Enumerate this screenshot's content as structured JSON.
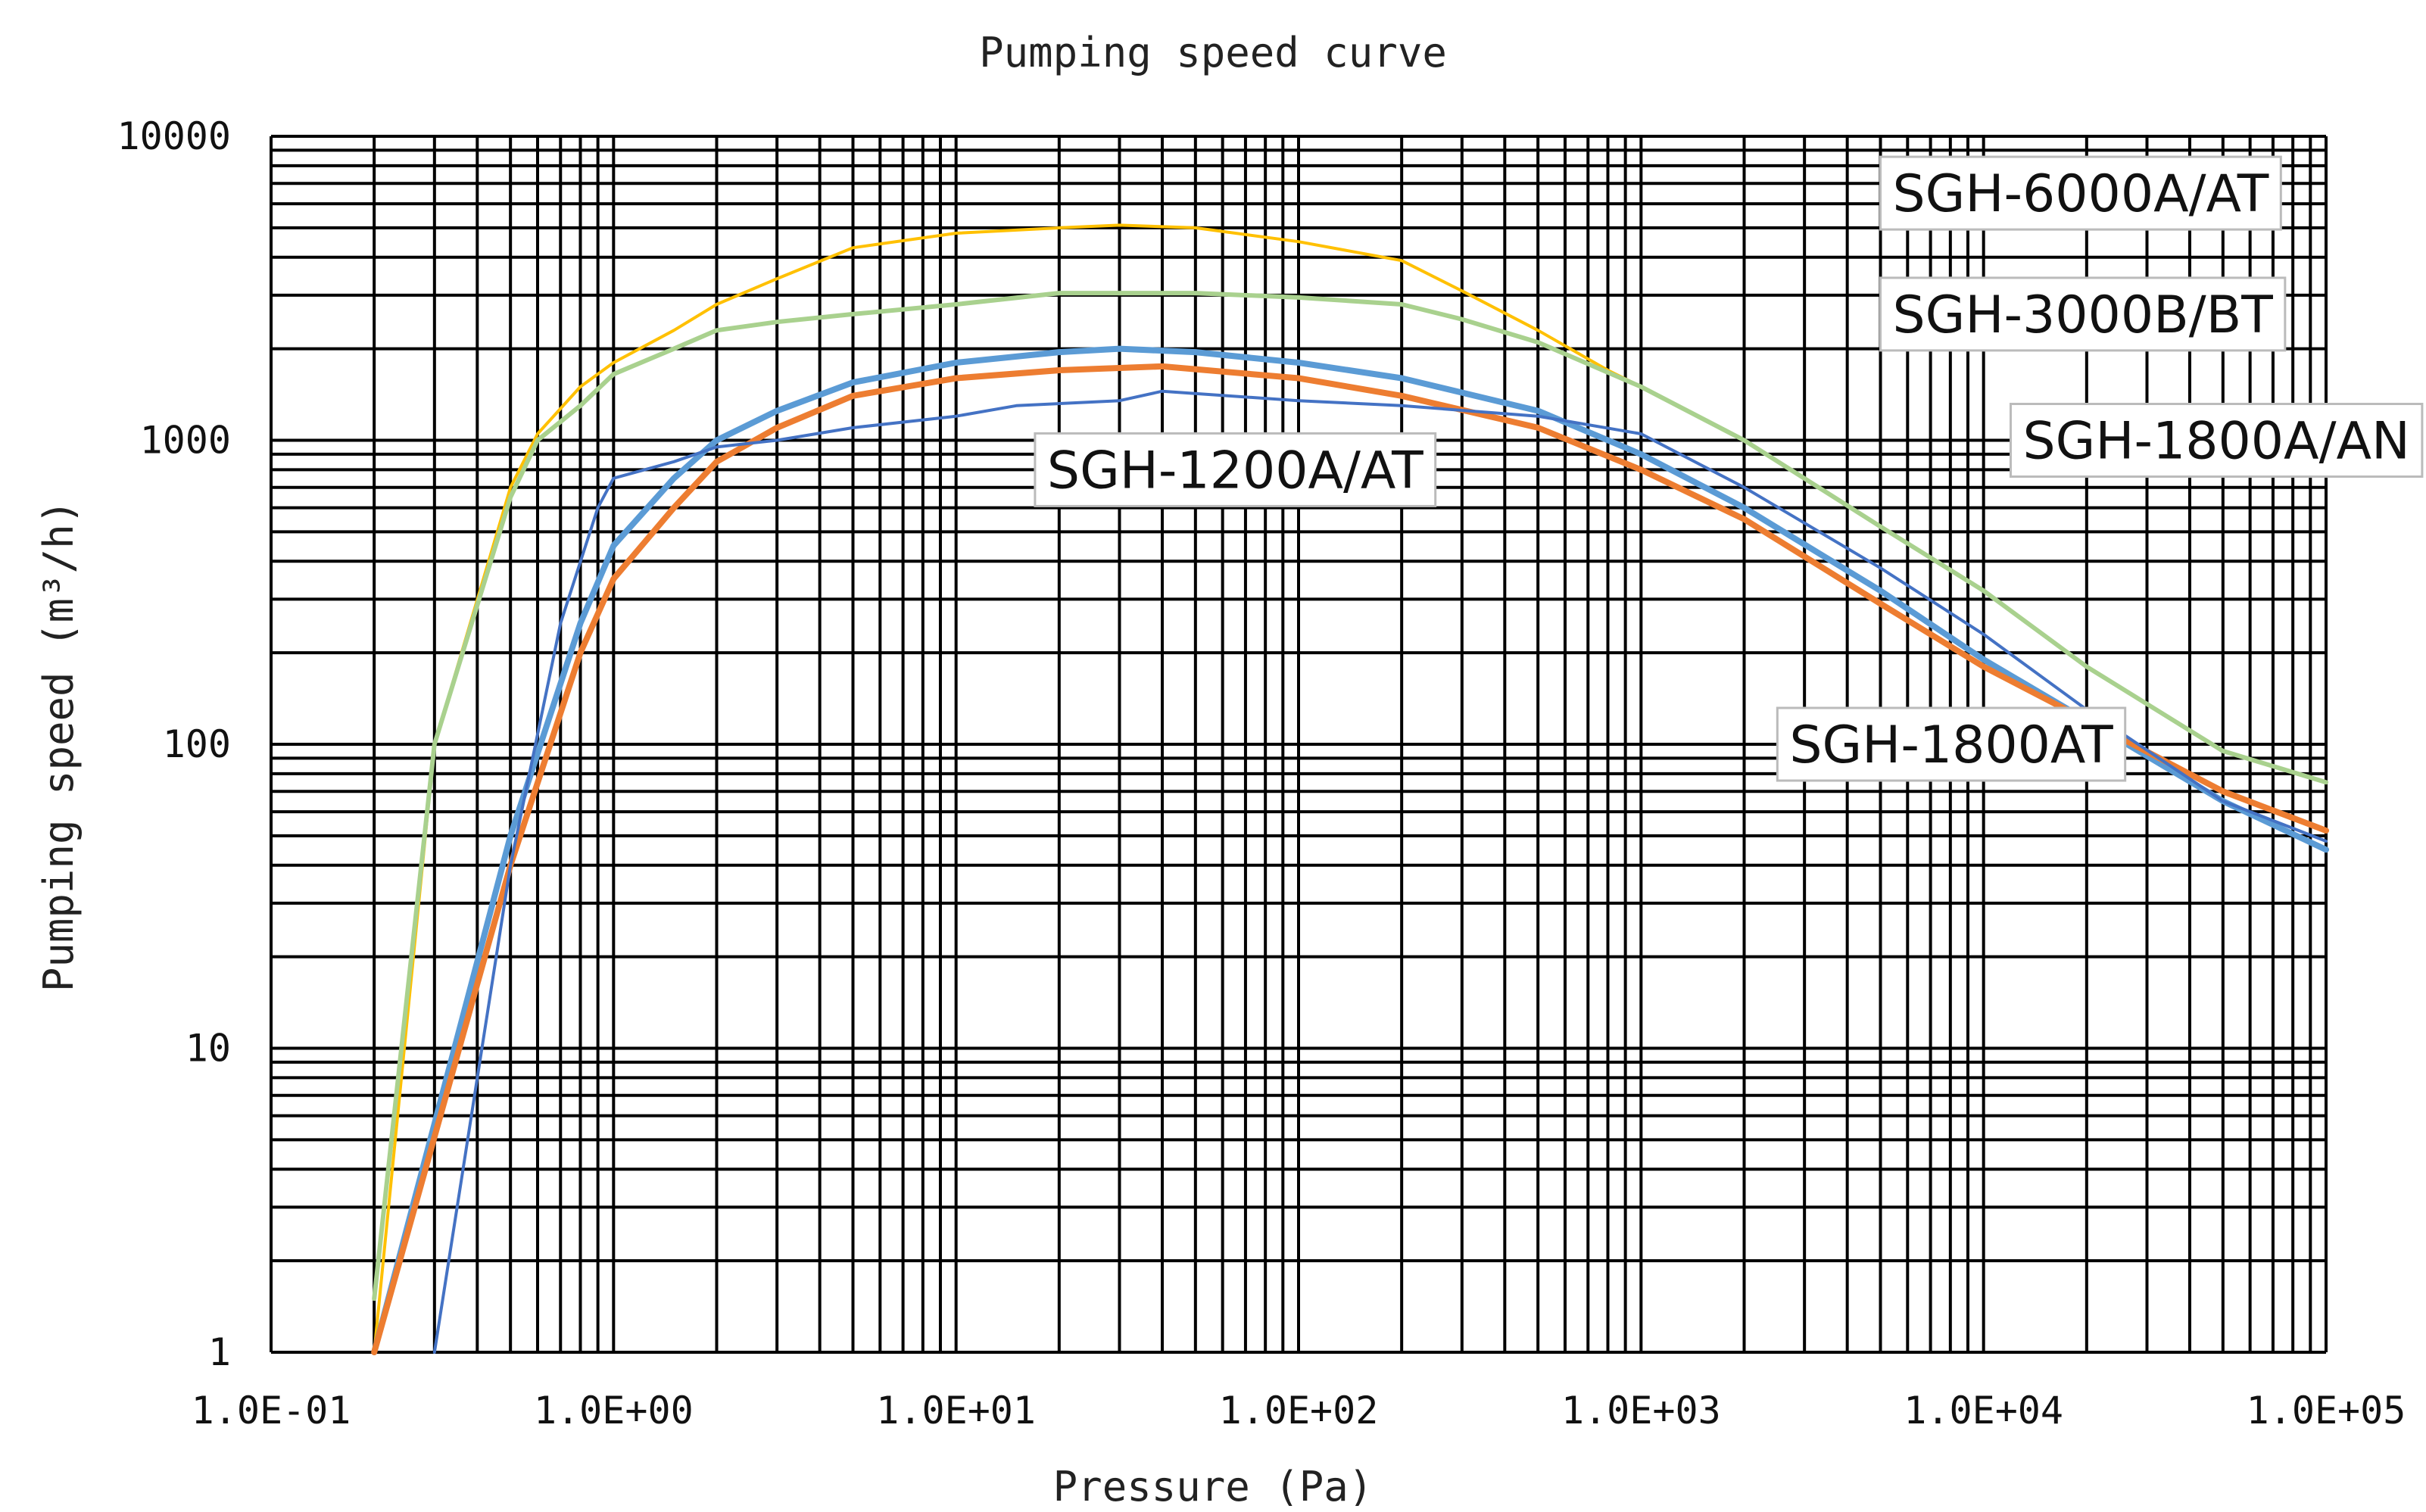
{
  "chart_data": {
    "type": "line",
    "title": "Pumping speed curve",
    "xlabel": "Pressure (Pa)",
    "ylabel": "Pumping speed (m³/h)",
    "x_scale": "log",
    "y_scale": "log",
    "xlim": [
      0.1,
      100000
    ],
    "ylim": [
      1,
      10000
    ],
    "x_ticks": [
      {
        "value": 0.1,
        "label": "1.0E-01"
      },
      {
        "value": 1,
        "label": "1.0E+00"
      },
      {
        "value": 10,
        "label": "1.0E+01"
      },
      {
        "value": 100,
        "label": "1.0E+02"
      },
      {
        "value": 1000,
        "label": "1.0E+03"
      },
      {
        "value": 10000,
        "label": "1.0E+04"
      },
      {
        "value": 100000,
        "label": "1.0E+05"
      }
    ],
    "y_ticks": [
      {
        "value": 1,
        "label": "1"
      },
      {
        "value": 10,
        "label": "10"
      },
      {
        "value": 100,
        "label": "100"
      },
      {
        "value": 1000,
        "label": "1000"
      },
      {
        "value": 10000,
        "label": "10000"
      }
    ],
    "grid": true,
    "series": [
      {
        "name": "SGH-6000A/AT",
        "color": "#FFC000",
        "width": 4,
        "points": [
          [
            0.2,
            1
          ],
          [
            0.3,
            100
          ],
          [
            0.5,
            700
          ],
          [
            0.6,
            1050
          ],
          [
            0.8,
            1500
          ],
          [
            1,
            1800
          ],
          [
            1.5,
            2300
          ],
          [
            2,
            2800
          ],
          [
            3,
            3400
          ],
          [
            5,
            4300
          ],
          [
            10,
            4800
          ],
          [
            20,
            5000
          ],
          [
            30,
            5100
          ],
          [
            50,
            5000
          ],
          [
            100,
            4500
          ],
          [
            200,
            3900
          ],
          [
            300,
            3100
          ],
          [
            500,
            2300
          ],
          [
            800,
            1700
          ],
          [
            1000,
            1500
          ],
          [
            2000,
            1000
          ]
        ]
      },
      {
        "name": "SGH-3000B/BT",
        "color": "#A9D18E",
        "width": 6,
        "points": [
          [
            0.2,
            1.5
          ],
          [
            0.3,
            100
          ],
          [
            0.5,
            650
          ],
          [
            0.6,
            1000
          ],
          [
            0.8,
            1300
          ],
          [
            1,
            1650
          ],
          [
            1.5,
            2000
          ],
          [
            2,
            2300
          ],
          [
            3,
            2450
          ],
          [
            5,
            2600
          ],
          [
            10,
            2800
          ],
          [
            20,
            3050
          ],
          [
            30,
            3050
          ],
          [
            50,
            3050
          ],
          [
            100,
            2950
          ],
          [
            200,
            2800
          ],
          [
            300,
            2500
          ],
          [
            500,
            2100
          ],
          [
            1000,
            1500
          ],
          [
            2000,
            1000
          ],
          [
            5000,
            520
          ],
          [
            10000,
            320
          ],
          [
            20000,
            180
          ],
          [
            50000,
            95
          ],
          [
            100000,
            75
          ]
        ]
      },
      {
        "name": "SGH-1800A/AN",
        "color": "#5B9BD5",
        "width": 8,
        "points": [
          [
            0.2,
            1
          ],
          [
            0.5,
            50
          ],
          [
            0.8,
            250
          ],
          [
            1,
            450
          ],
          [
            1.5,
            750
          ],
          [
            2,
            1000
          ],
          [
            3,
            1250
          ],
          [
            5,
            1550
          ],
          [
            10,
            1800
          ],
          [
            20,
            1950
          ],
          [
            30,
            2000
          ],
          [
            50,
            1950
          ],
          [
            100,
            1800
          ],
          [
            200,
            1600
          ],
          [
            500,
            1250
          ],
          [
            1000,
            900
          ],
          [
            2000,
            600
          ],
          [
            5000,
            320
          ],
          [
            10000,
            190
          ],
          [
            20000,
            120
          ],
          [
            50000,
            65
          ],
          [
            100000,
            45
          ]
        ]
      },
      {
        "name": "SGH-1800AT",
        "color": "#ED7D31",
        "width": 8,
        "points": [
          [
            0.2,
            1
          ],
          [
            0.5,
            40
          ],
          [
            0.8,
            200
          ],
          [
            1,
            350
          ],
          [
            1.5,
            600
          ],
          [
            2,
            850
          ],
          [
            3,
            1100
          ],
          [
            5,
            1400
          ],
          [
            10,
            1600
          ],
          [
            20,
            1700
          ],
          [
            40,
            1750
          ],
          [
            100,
            1600
          ],
          [
            200,
            1400
          ],
          [
            500,
            1100
          ],
          [
            1000,
            800
          ],
          [
            2000,
            550
          ],
          [
            5000,
            290
          ],
          [
            10000,
            180
          ],
          [
            20000,
            120
          ],
          [
            50000,
            70
          ],
          [
            100000,
            52
          ]
        ]
      },
      {
        "name": "SGH-1200A/AT",
        "color": "#4472C4",
        "width": 4,
        "points": [
          [
            0.3,
            1
          ],
          [
            0.5,
            40
          ],
          [
            0.7,
            250
          ],
          [
            0.9,
            600
          ],
          [
            1,
            750
          ],
          [
            1.5,
            850
          ],
          [
            2,
            950
          ],
          [
            3,
            1000
          ],
          [
            5,
            1100
          ],
          [
            10,
            1200
          ],
          [
            15,
            1300
          ],
          [
            30,
            1350
          ],
          [
            40,
            1450
          ],
          [
            100,
            1350
          ],
          [
            200,
            1300
          ],
          [
            500,
            1200
          ],
          [
            1000,
            1050
          ],
          [
            2000,
            700
          ],
          [
            5000,
            380
          ],
          [
            10000,
            230
          ],
          [
            20000,
            130
          ],
          [
            50000,
            65
          ],
          [
            100000,
            48
          ]
        ]
      }
    ],
    "annotations": [
      {
        "text": "SGH-6000A/AT",
        "x": 5000,
        "y": 6500
      },
      {
        "text": "SGH-3000B/BT",
        "x": 5000,
        "y": 2600
      },
      {
        "text": "SGH-1800A/AN",
        "x": 12000,
        "y": 1000
      },
      {
        "text": "SGH-1200A/AT",
        "x": 17,
        "y": 800
      },
      {
        "text": "SGH-1800AT",
        "x": 2500,
        "y": 100
      }
    ]
  }
}
